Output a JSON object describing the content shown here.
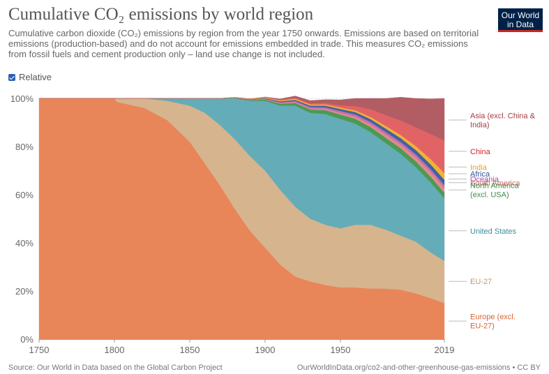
{
  "title": "Cumulative CO₂ emissions by world region",
  "subtitle": "Cumulative carbon dioxide (CO₂) emissions by region from the year 1750 onwards. Emissions are based on territorial emissions (production-based) and do not account for emissions embedded in trade. This measures CO₂ emissions from fossil fuels and cement production only – land use change is not included.",
  "logo": {
    "line1": "Our World",
    "line2": "in Data"
  },
  "relative_toggle": {
    "label": "Relative",
    "checked": true
  },
  "footer": {
    "source": "Source: Our World in Data based on the Global Carbon Project",
    "url": "OurWorldInData.org/co2-and-other-greenhouse-gas-emissions • CC BY"
  },
  "chart_data": {
    "type": "area",
    "stacked": true,
    "relative": true,
    "xlim": [
      1750,
      2019
    ],
    "ylim": [
      0,
      100
    ],
    "x_ticks": [
      1750,
      1800,
      1850,
      1900,
      1950,
      2019
    ],
    "y_ticks": [
      0,
      20,
      40,
      60,
      80,
      100
    ],
    "y_tick_labels": [
      "0%",
      "20%",
      "40%",
      "60%",
      "80%",
      "100%"
    ],
    "x": [
      1750,
      1800,
      1802,
      1820,
      1835,
      1850,
      1860,
      1870,
      1880,
      1890,
      1900,
      1910,
      1920,
      1930,
      1940,
      1950,
      1960,
      1970,
      1980,
      1990,
      2000,
      2010,
      2019
    ],
    "series": [
      {
        "name": "Europe (excl. EU-27)",
        "color": "#e8865a",
        "values": [
          100,
          100,
          98.5,
          96,
          91,
          82,
          73,
          64,
          54,
          45,
          38,
          31,
          26,
          24,
          22.5,
          21.5,
          21.5,
          21,
          21,
          20.5,
          19,
          17,
          15
        ]
      },
      {
        "name": "EU-27",
        "color": "#d6b48e",
        "values": [
          0,
          0,
          1.5,
          4,
          8,
          15,
          21,
          25,
          29,
          31,
          32,
          31,
          29,
          26,
          25,
          24.5,
          26,
          26.5,
          24.5,
          22.5,
          21.5,
          19,
          17.5
        ]
      },
      {
        "name": "United States",
        "color": "#64acb7",
        "values": [
          0,
          0,
          0,
          0,
          1,
          3,
          6,
          11,
          17,
          23,
          29,
          35,
          42,
          44,
          46,
          45.5,
          42,
          38.5,
          36,
          34,
          31,
          29,
          26
        ]
      },
      {
        "name": "North America (excl. USA)",
        "color": "#4b9a54",
        "values": [
          0,
          0,
          0,
          0,
          0,
          0,
          0,
          0,
          0.2,
          0.3,
          0.5,
          0.8,
          1.1,
          1.4,
          1.6,
          1.8,
          2,
          2.1,
          2.2,
          2.3,
          2.4,
          2.4,
          2.3
        ]
      },
      {
        "name": "South America",
        "color": "#e08a8a",
        "values": [
          0,
          0,
          0,
          0,
          0,
          0,
          0,
          0,
          0,
          0,
          0.1,
          0.2,
          0.3,
          0.4,
          0.5,
          0.7,
          0.9,
          1.1,
          1.3,
          1.5,
          1.7,
          1.9,
          2
        ]
      },
      {
        "name": "Oceania",
        "color": "#c46fae",
        "values": [
          0,
          0,
          0,
          0,
          0,
          0,
          0,
          0,
          0.1,
          0.2,
          0.3,
          0.4,
          0.5,
          0.6,
          0.7,
          0.8,
          0.9,
          1,
          1.1,
          1.1,
          1.2,
          1.2,
          1.2
        ]
      },
      {
        "name": "Africa",
        "color": "#3d63a3",
        "values": [
          0,
          0,
          0,
          0,
          0,
          0,
          0,
          0,
          0,
          0.1,
          0.2,
          0.4,
          0.5,
          0.6,
          0.7,
          0.8,
          1,
          1.2,
          1.4,
          1.6,
          1.8,
          2,
          2.2
        ]
      },
      {
        "name": "India",
        "color": "#f2b233",
        "values": [
          0,
          0,
          0,
          0,
          0,
          0,
          0,
          0,
          0.1,
          0.2,
          0.3,
          0.4,
          0.5,
          0.5,
          0.5,
          0.6,
          0.7,
          0.9,
          1.1,
          1.3,
          1.6,
          2.2,
          2.8
        ]
      },
      {
        "name": "China",
        "color": "#e26365",
        "values": [
          0,
          0,
          0,
          0,
          0,
          0,
          0,
          0,
          0,
          0,
          0.1,
          0.2,
          0.3,
          0.4,
          0.6,
          0.9,
          1.8,
          3.2,
          4.5,
          6,
          7.8,
          10.5,
          13.5
        ]
      },
      {
        "name": "Asia (excl. China & India)",
        "color": "#b25d63",
        "values": [
          0,
          0,
          0,
          0,
          0,
          0,
          0,
          0,
          0,
          0,
          0.1,
          0.4,
          0.8,
          1.2,
          1.4,
          2.3,
          3.2,
          4.5,
          6.9,
          9.7,
          12,
          14.6,
          17.5
        ]
      }
    ],
    "legend": [
      {
        "label_lines": [
          "Asia (excl. China &",
          "India)"
        ],
        "color": "#a43a40",
        "value": 91
      },
      {
        "label_lines": [
          "China"
        ],
        "color": "#c5262b",
        "value": 78
      },
      {
        "label_lines": [
          "India"
        ],
        "color": "#e3a31d",
        "value": 71.5
      },
      {
        "label_lines": [
          "Africa"
        ],
        "color": "#2e559b",
        "value": 68.7
      },
      {
        "label_lines": [
          "Oceania"
        ],
        "color": "#a9469b",
        "value": 66.5
      },
      {
        "label_lines": [
          "South America"
        ],
        "color": "#d66a6a",
        "value": 65
      },
      {
        "label_lines": [
          "North America",
          "(excl. USA)"
        ],
        "color": "#3e8a45",
        "value": 62
      },
      {
        "label_lines": [
          "United States"
        ],
        "color": "#3a8d9b",
        "value": 45
      },
      {
        "label_lines": [
          "EU-27"
        ],
        "color": "#c19a6f",
        "value": 24
      },
      {
        "label_lines": [
          "Europe (excl.",
          "EU-27)"
        ],
        "color": "#d8632f",
        "value": 7.5
      }
    ]
  }
}
